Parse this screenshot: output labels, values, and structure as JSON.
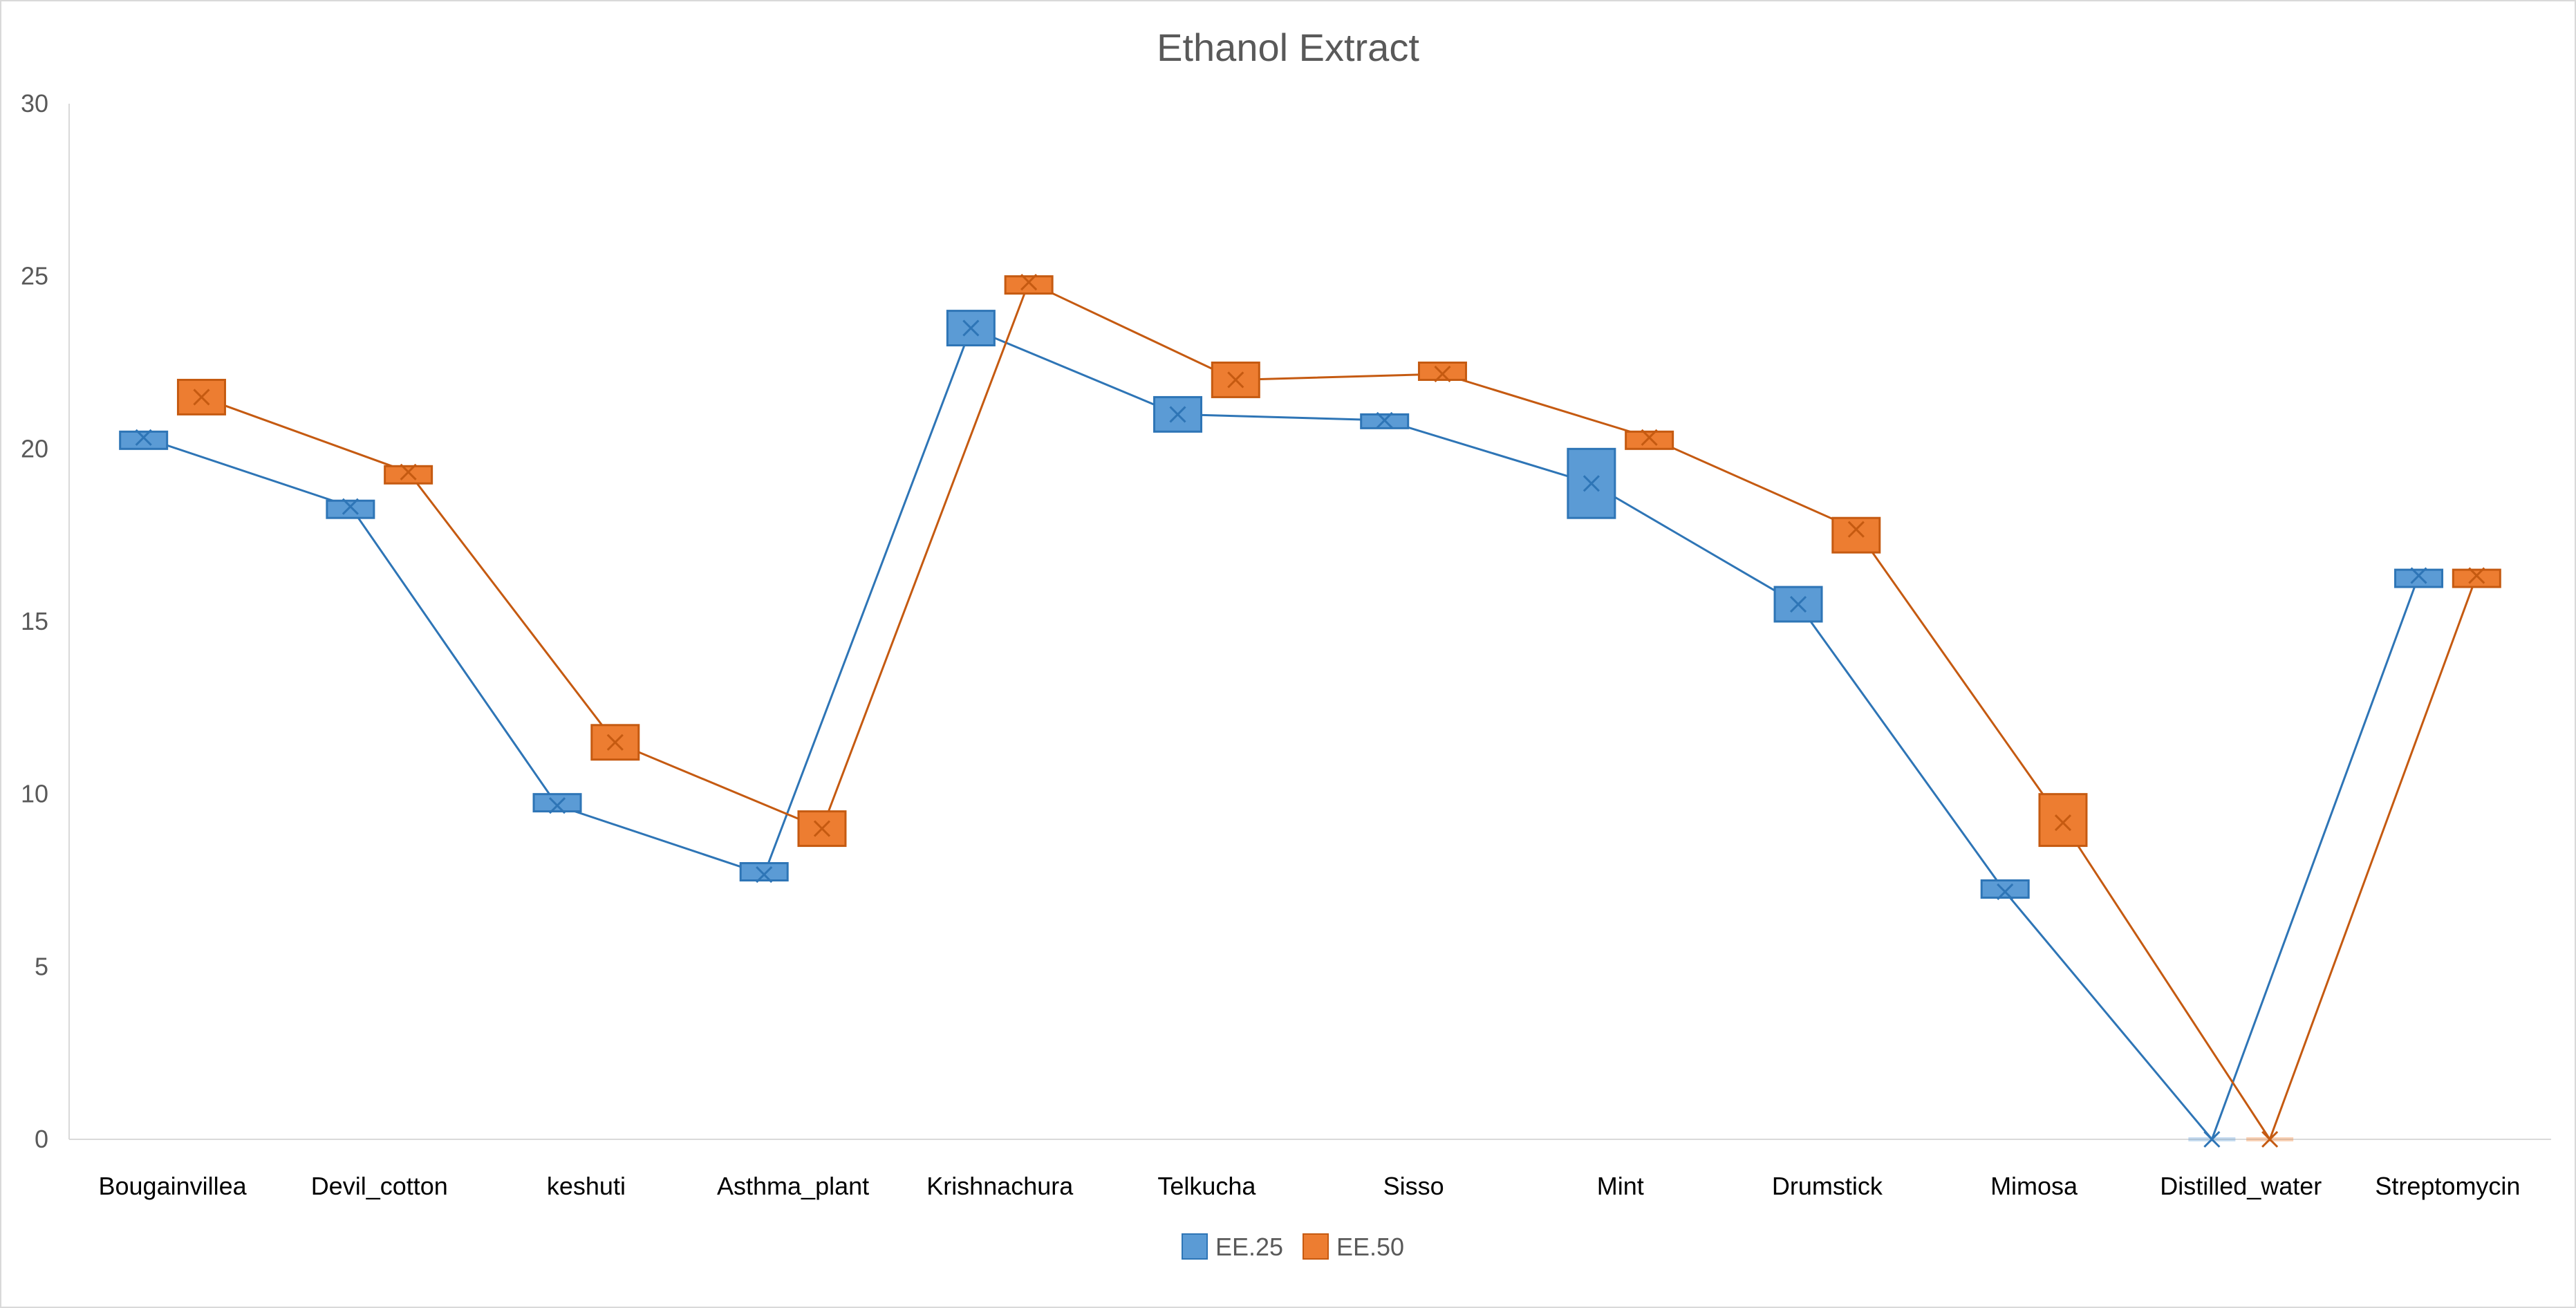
{
  "chart_data": {
    "type": "box",
    "title": "Ethanol Extract",
    "xlabel": "",
    "ylabel": "",
    "ylim": [
      0,
      30
    ],
    "yticks": [
      0,
      5,
      10,
      15,
      20,
      25,
      30
    ],
    "grid": false,
    "legend_position": "bottom",
    "categories": [
      "Bougainvillea",
      "Devil_cotton",
      "keshuti",
      "Asthma_plant",
      "Krishnachura",
      "Telkucha",
      "Sisso",
      "Mint",
      "Drumstick",
      "Mimosa",
      "Distilled_water",
      "Streptomycin"
    ],
    "series": [
      {
        "name": "EE.25",
        "color": "#5B9BD5",
        "border": "#2E75B6",
        "line_color": "#2E75B6",
        "boxes": [
          {
            "low": 20.0,
            "high": 20.5,
            "mean": 20.33
          },
          {
            "low": 18.0,
            "high": 18.5,
            "mean": 18.33
          },
          {
            "low": 9.5,
            "high": 10.0,
            "mean": 9.67
          },
          {
            "low": 7.5,
            "high": 8.0,
            "mean": 7.67
          },
          {
            "low": 23.0,
            "high": 24.0,
            "mean": 23.5
          },
          {
            "low": 20.5,
            "high": 21.5,
            "mean": 21.0
          },
          {
            "low": 20.6,
            "high": 21.0,
            "mean": 20.83
          },
          {
            "low": 18.0,
            "high": 20.0,
            "mean": 19.0
          },
          {
            "low": 15.0,
            "high": 16.0,
            "mean": 15.5
          },
          {
            "low": 7.0,
            "high": 7.5,
            "mean": 7.17
          },
          {
            "low": 0,
            "high": 0,
            "mean": 0
          },
          {
            "low": 16.0,
            "high": 16.5,
            "mean": 16.33
          }
        ]
      },
      {
        "name": "EE.50",
        "color": "#ED7D31",
        "border": "#C55A11",
        "line_color": "#C55A11",
        "boxes": [
          {
            "low": 21.0,
            "high": 22.0,
            "mean": 21.5
          },
          {
            "low": 19.0,
            "high": 19.5,
            "mean": 19.33
          },
          {
            "low": 11.0,
            "high": 12.0,
            "mean": 11.5
          },
          {
            "low": 8.5,
            "high": 9.5,
            "mean": 9.0
          },
          {
            "low": 24.5,
            "high": 25.0,
            "mean": 24.83
          },
          {
            "low": 21.5,
            "high": 22.5,
            "mean": 22.0
          },
          {
            "low": 22.0,
            "high": 22.5,
            "mean": 22.17
          },
          {
            "low": 20.0,
            "high": 20.5,
            "mean": 20.33
          },
          {
            "low": 17.0,
            "high": 18.0,
            "mean": 17.67
          },
          {
            "low": 8.5,
            "high": 10.0,
            "mean": 9.17
          },
          {
            "low": 0,
            "high": 0,
            "mean": 0
          },
          {
            "low": 16.0,
            "high": 16.5,
            "mean": 16.33
          }
        ]
      }
    ]
  }
}
